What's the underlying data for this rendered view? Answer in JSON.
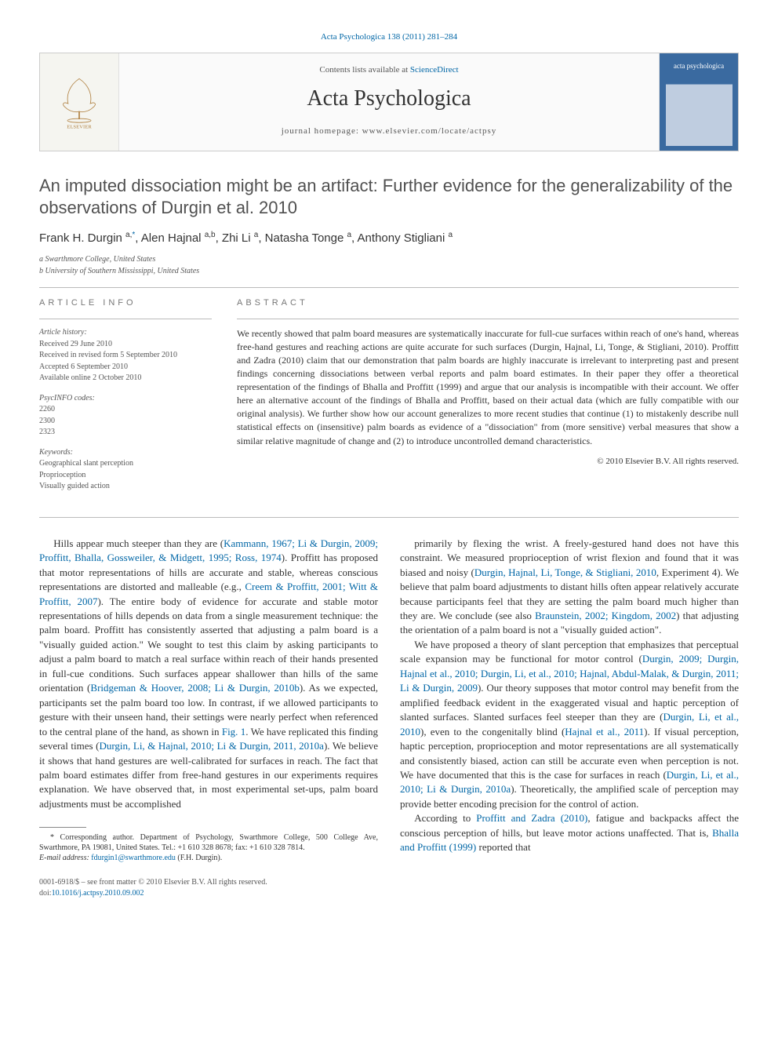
{
  "header_link": "Acta Psychologica 138 (2011) 281–284",
  "banner": {
    "contents_prefix": "Contents lists available at ",
    "contents_link": "ScienceDirect",
    "journal_name": "Acta Psychologica",
    "homepage_label": "journal homepage: www.elsevier.com/locate/actpsy",
    "publisher": "ELSEVIER",
    "cover_text": "acta psychologica"
  },
  "title": "An imputed dissociation might be an artifact: Further evidence for the generalizability of the observations of Durgin et al. 2010",
  "authors_html": "Frank H. Durgin <sup>a,</sup><sup class='corr-star'>*</sup>, Alen Hajnal <sup>a,b</sup>, Zhi Li <sup>a</sup>, Natasha Tonge <sup>a</sup>, Anthony Stigliani <sup>a</sup>",
  "affiliations": [
    "a Swarthmore College, United States",
    "b University of Southern Mississippi, United States"
  ],
  "info_heading": "ARTICLE INFO",
  "abstract_heading": "ABSTRACT",
  "history": {
    "label": "Article history:",
    "items": [
      "Received 29 June 2010",
      "Received in revised form 5 September 2010",
      "Accepted 6 September 2010",
      "Available online 2 October 2010"
    ]
  },
  "psycinfo": {
    "label": "PsycINFO codes:",
    "items": [
      "2260",
      "2300",
      "2323"
    ]
  },
  "keywords": {
    "label": "Keywords:",
    "items": [
      "Geographical slant perception",
      "Proprioception",
      "Visually guided action"
    ]
  },
  "abstract": "We recently showed that palm board measures are systematically inaccurate for full-cue surfaces within reach of one's hand, whereas free-hand gestures and reaching actions are quite accurate for such surfaces (Durgin, Hajnal, Li, Tonge, & Stigliani, 2010). Proffitt and Zadra (2010) claim that our demonstration that palm boards are highly inaccurate is irrelevant to interpreting past and present findings concerning dissociations between verbal reports and palm board estimates. In their paper they offer a theoretical representation of the findings of Bhalla and Proffitt (1999) and argue that our analysis is incompatible with their account. We offer here an alternative account of the findings of Bhalla and Proffitt, based on their actual data (which are fully compatible with our original analysis). We further show how our account generalizes to more recent studies that continue (1) to mistakenly describe null statistical effects on (insensitive) palm boards as evidence of a \"dissociation\" from (more sensitive) verbal measures that show a similar relative magnitude of change and (2) to introduce uncontrolled demand characteristics.",
  "copyright": "© 2010 Elsevier B.V. All rights reserved.",
  "body": {
    "left": "Hills appear much steeper than they are (<span class='ref-link'>Kammann, 1967; Li & Durgin, 2009; Proffitt, Bhalla, Gossweiler, & Midgett, 1995; Ross, 1974</span>). Proffitt has proposed that motor representations of hills are accurate and stable, whereas conscious representations are distorted and malleable (e.g., <span class='ref-link'>Creem & Proffitt, 2001; Witt & Proffitt, 2007</span>). The entire body of evidence for accurate and stable motor representations of hills depends on data from a single measurement technique: the palm board. Proffitt has consistently asserted that adjusting a palm board is a \"visually guided action.\" We sought to test this claim by asking participants to adjust a palm board to match a real surface within reach of their hands presented in full-cue conditions. Such surfaces appear shallower than hills of the same orientation (<span class='ref-link'>Bridgeman & Hoover, 2008; Li & Durgin, 2010b</span>). As we expected, participants set the palm board too low. In contrast, if we allowed participants to gesture with their unseen hand, their settings were nearly perfect when referenced to the central plane of the hand, as shown in <span class='ref-link'>Fig. 1</span>. We have replicated this finding several times (<span class='ref-link'>Durgin, Li, & Hajnal, 2010; Li & Durgin, 2011, 2010a</span>). We believe it shows that hand gestures are well-calibrated for surfaces in reach. The fact that palm board estimates differ from free-hand gestures in our experiments requires explanation. We have observed that, in most experimental set-ups, palm board adjustments must be accomplished",
    "right": "primarily by flexing the wrist. A freely-gestured hand does not have this constraint. We measured proprioception of wrist flexion and found that it was biased and noisy (<span class='ref-link'>Durgin, Hajnal, Li, Tonge, & Stigliani, 2010</span>, Experiment 4). We believe that palm board adjustments to distant hills often appear relatively accurate because participants feel that they are setting the palm board much higher than they are. We conclude (see also <span class='ref-link'>Braunstein, 2002; Kingdom, 2002</span>) that adjusting the orientation of a palm board is not a \"visually guided action\".</p><p>We have proposed a theory of slant perception that emphasizes that perceptual scale expansion may be functional for motor control (<span class='ref-link'>Durgin, 2009; Durgin, Hajnal et al., 2010; Durgin, Li, et al., 2010; Hajnal, Abdul-Malak, & Durgin, 2011; Li & Durgin, 2009</span>). Our theory supposes that motor control may benefit from the amplified feedback evident in the exaggerated visual and haptic perception of slanted surfaces. Slanted surfaces feel steeper than they are (<span class='ref-link'>Durgin, Li, et al., 2010</span>), even to the congenitally blind (<span class='ref-link'>Hajnal et al., 2011</span>). If visual perception, haptic perception, proprioception and motor representations are all systematically and consistently biased, action can still be accurate even when perception is not. We have documented that this is the case for surfaces in reach (<span class='ref-link'>Durgin, Li, et al., 2010; Li & Durgin, 2010a</span>). Theoretically, the amplified scale of perception may provide better encoding precision for the control of action.</p><p>According to <span class='ref-link'>Proffitt and Zadra (2010)</span>, fatigue and backpacks affect the conscious perception of hills, but leave motor actions unaffected. That is, <span class='ref-link'>Bhalla and Proffitt (1999)</span> reported that"
  },
  "footnote": {
    "text_prefix": "* Corresponding author. Department of Psychology, Swarthmore College, 500 College Ave, Swarthmore, PA 19081, United States. Tel.: +1 610 328 8678; fax: +1 610 328 7814.",
    "email_label": "E-mail address:",
    "email": "fdurgin1@swarthmore.edu",
    "email_suffix": "(F.H. Durgin)."
  },
  "footer": {
    "left_line1": "0001-6918/$ – see front matter © 2010 Elsevier B.V. All rights reserved.",
    "left_line2": "doi:",
    "doi": "10.1016/j.actpsy.2010.09.002"
  },
  "colors": {
    "link": "#0066a6",
    "text": "#333333",
    "rule": "#bbbbbb",
    "banner_bg": "#fafafa",
    "cover_blue": "#3a6aa0"
  }
}
